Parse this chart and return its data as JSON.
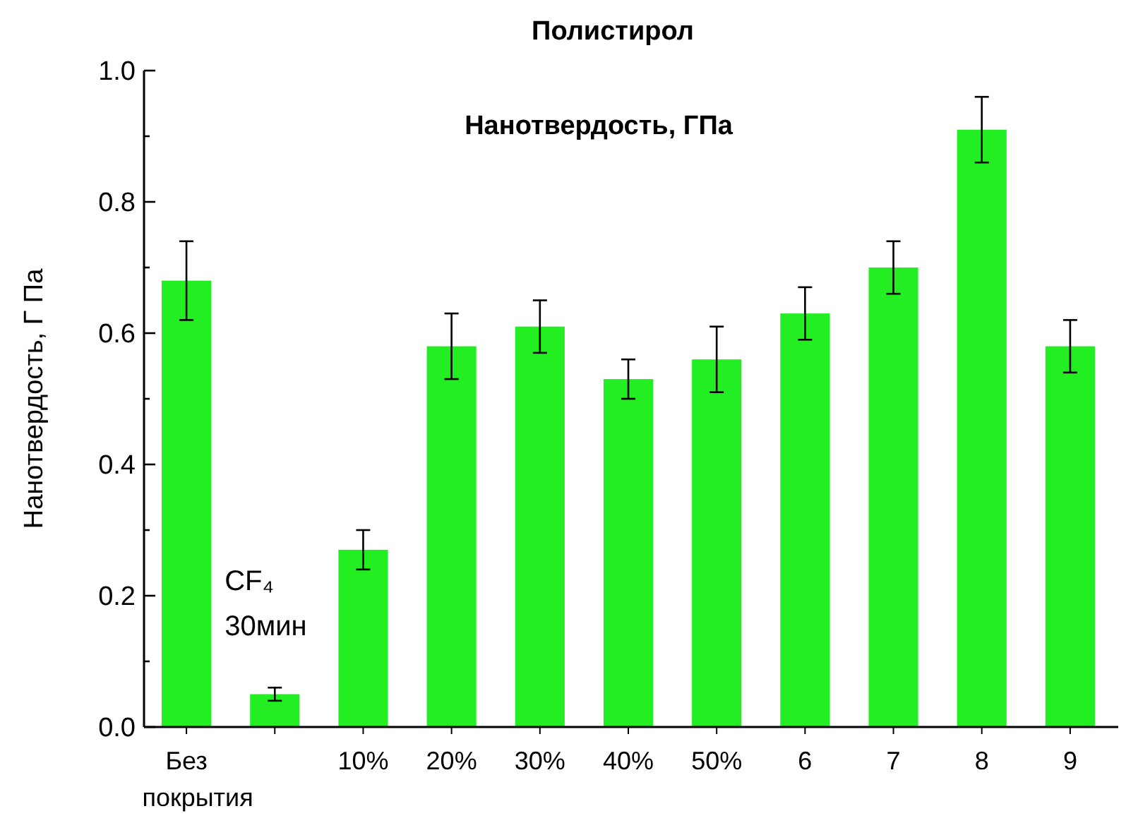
{
  "chart_data": {
    "type": "bar",
    "title": "Полистирол",
    "subtitle": "Нанотвердость, ГПа",
    "ylabel": "Нанотвердость, Г Па",
    "categories": [
      "Без покрытия",
      null,
      "10%",
      "20%",
      "30%",
      "40%",
      "50%",
      "6",
      "7",
      "8",
      "9"
    ],
    "values": [
      0.68,
      0.05,
      0.27,
      0.58,
      0.61,
      0.53,
      0.56,
      0.63,
      0.7,
      0.91,
      0.58
    ],
    "errors": [
      0.06,
      0.01,
      0.03,
      0.05,
      0.04,
      0.03,
      0.05,
      0.04,
      0.04,
      0.05,
      0.04
    ],
    "color": "#22ee22",
    "ylim": [
      0,
      1
    ],
    "yticks": [
      {
        "value": 0,
        "label": "0.0"
      },
      {
        "value": 0.1,
        "label": null
      },
      {
        "value": 0.2,
        "label": "0.2"
      },
      {
        "value": 0.3,
        "label": null
      },
      {
        "value": 0.4,
        "label": "0.4"
      },
      {
        "value": 0.5,
        "label": null
      },
      {
        "value": 0.6,
        "label": "0.6"
      },
      {
        "value": 0.7,
        "label": null
      },
      {
        "value": 0.8,
        "label": "0.8"
      },
      {
        "value": 0.9,
        "label": null
      },
      {
        "value": 1,
        "label": "1.0"
      }
    ],
    "annotations": [
      "CF₄\n30мин"
    ],
    "grid": false
  }
}
